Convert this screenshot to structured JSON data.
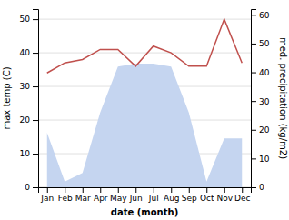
{
  "chart_data": {
    "type": "line",
    "categories": [
      "Jan",
      "Feb",
      "Mar",
      "Apr",
      "May",
      "Jun",
      "Jul",
      "Aug",
      "Sep",
      "Oct",
      "Nov",
      "Dec"
    ],
    "xlabel": "date (month)",
    "ylabel": "max temp (C)",
    "y2label": "med. precipitation (kg/m2)",
    "series": [
      {
        "type": "area",
        "axis": "y2",
        "color": "#c5d5f0",
        "values": [
          19,
          2,
          5,
          26,
          42,
          43,
          43,
          42,
          26,
          2,
          17,
          17
        ]
      },
      {
        "type": "line",
        "color": "#c0504d",
        "values": [
          34,
          37,
          38,
          41,
          41,
          36,
          42,
          40,
          36,
          36,
          50,
          37
        ]
      }
    ],
    "ylim": [
      0,
      53
    ],
    "yticks": [
      0,
      10,
      20,
      30,
      40,
      50
    ],
    "y2lim": [
      0,
      62
    ],
    "y2ticks": [
      0,
      10,
      20,
      30,
      40,
      50,
      60
    ],
    "grid": true
  }
}
